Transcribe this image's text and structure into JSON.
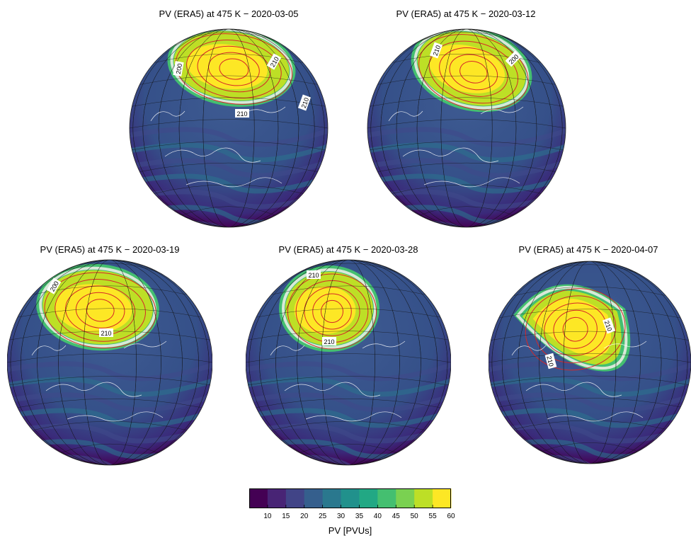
{
  "panels": [
    {
      "title": "PV (ERA5) at 475 K − 2020-03-05",
      "contour_labels": [
        "210",
        "200",
        "210",
        "210"
      ]
    },
    {
      "title": "PV (ERA5) at 475 K − 2020-03-12",
      "contour_labels": [
        "210",
        "200"
      ]
    },
    {
      "title": "PV (ERA5) at 475 K − 2020-03-19",
      "contour_labels": [
        "200",
        "210"
      ]
    },
    {
      "title": "PV (ERA5) at 475 K − 2020-03-28",
      "contour_labels": [
        "210",
        "210"
      ]
    },
    {
      "title": "PV (ERA5) at 475 K − 2020-04-07",
      "contour_labels": [
        "210",
        "210"
      ]
    }
  ],
  "colorbar": {
    "label": "PV [PVUs]",
    "ticks": [
      "10",
      "15",
      "20",
      "25",
      "30",
      "35",
      "40",
      "45",
      "50",
      "55",
      "60"
    ],
    "colors": [
      "#440154",
      "#482475",
      "#414487",
      "#355f8d",
      "#2a788e",
      "#21918c",
      "#22a884",
      "#44bf70",
      "#7ad151",
      "#bddf26",
      "#fde725"
    ]
  },
  "palette": {
    "ocean": "#3b528b",
    "land_low": "#482878",
    "vortex_edge": "#35b779",
    "vortex_core": "#fde725",
    "contour": "#d62728",
    "coast": "#ffffff"
  }
}
